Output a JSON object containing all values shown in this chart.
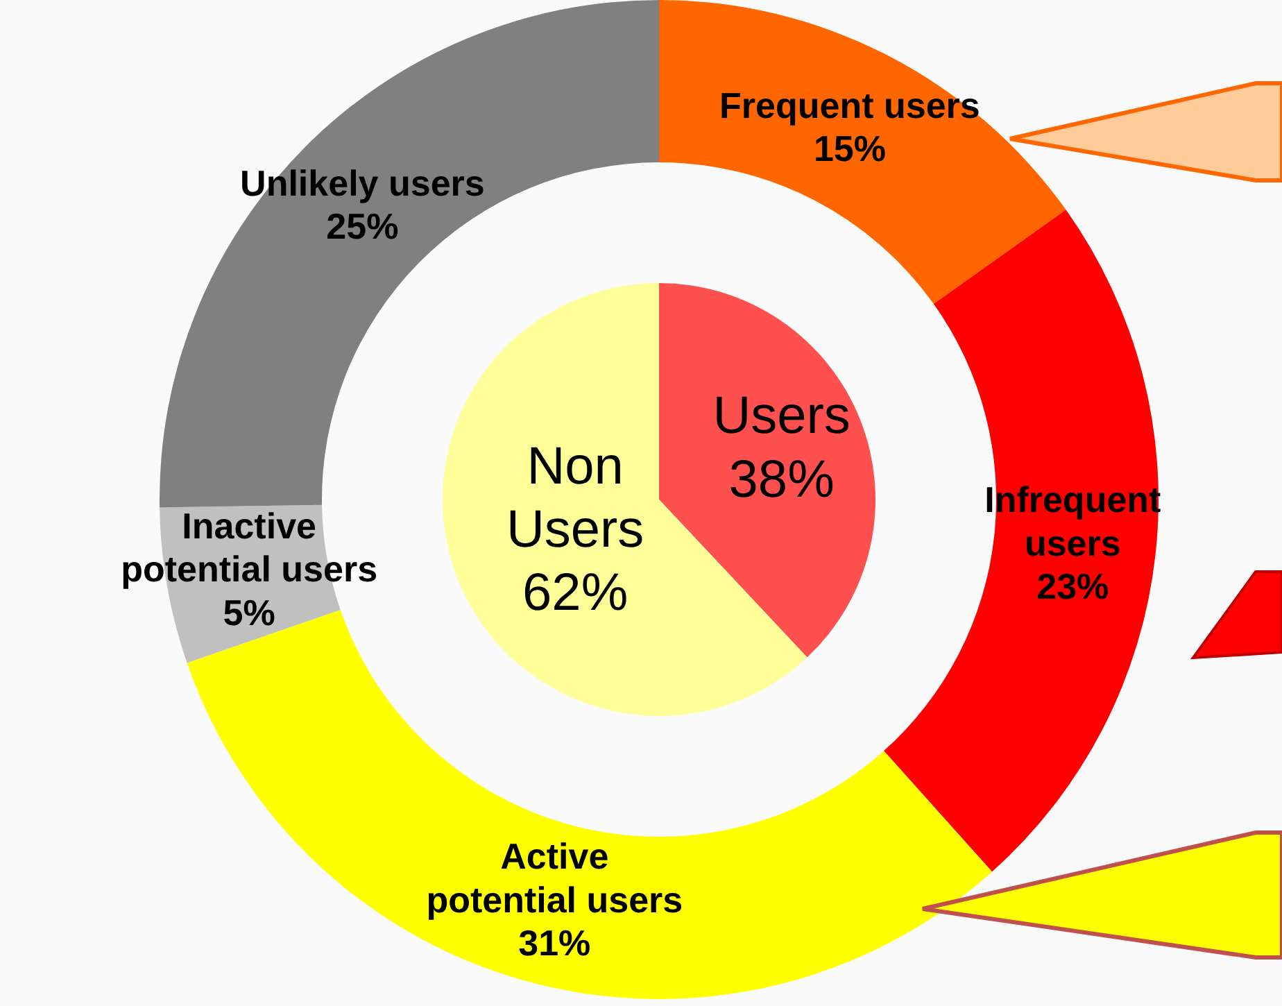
{
  "chart_data": [
    {
      "type": "donut",
      "categories": [
        "Frequent users",
        "Infrequent users",
        "Active potential users",
        "Inactive potential users",
        "Unlikely users"
      ],
      "values": [
        15,
        23,
        31,
        5,
        25
      ],
      "value_labels": [
        "15%",
        "23%",
        "31%",
        "5%",
        "25%"
      ],
      "colors": [
        "#ff6600",
        "#ff0000",
        "#ffff00",
        "#c0c0c0",
        "#808080"
      ]
    },
    {
      "type": "pie",
      "categories": [
        "Users",
        "Non Users"
      ],
      "values": [
        38,
        62
      ],
      "value_labels": [
        "38%",
        "62%"
      ],
      "colors": [
        "#ff5050",
        "#ffff99"
      ]
    }
  ]
}
